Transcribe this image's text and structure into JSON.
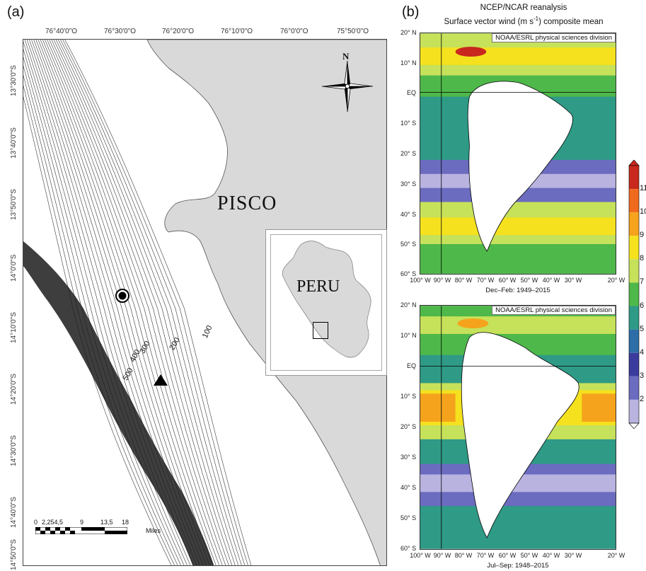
{
  "panel_a": {
    "letter": "(a)",
    "top_ticks": [
      "76°40'0\"O",
      "76°30'0\"O",
      "76°20'0\"O",
      "76°10'0\"O",
      "76°0'0\"O",
      "75°50'0\"O"
    ],
    "left_ticks": [
      "13°30'0\"S",
      "13°40'0\"S",
      "13°50'0\"S",
      "14°0'0\"S",
      "14°10'0\"S",
      "14°20'0\"S",
      "14°30'0\"S",
      "14°40'0\"S",
      "14°50'0\"S"
    ],
    "place_label": "PISCO",
    "inset_label": "PERU",
    "north_label": "N",
    "contour_labels": [
      "100",
      "200",
      "300",
      "400",
      "500"
    ],
    "scale_numbers": [
      "0",
      "2,254,5",
      "9",
      "13,5",
      "18"
    ],
    "scale_unit": "Miles",
    "colors": {
      "land": "#d9d9d9",
      "sea": "#ffffff",
      "contour": "#3a3a3a"
    }
  },
  "panel_b": {
    "letter": "(b)",
    "title_line1": "NCEP/NCAR reanalysis",
    "title_line2": "Surface vector wind (m s",
    "title_sup": "-1",
    "title_line2_end": ") composite mean",
    "credit": "NOAA/ESRL physical sciences division",
    "lat_labels": [
      "20° N",
      "10° N",
      "EQ",
      "10° S",
      "20° S",
      "30° S",
      "40° S",
      "50° S",
      "60° S"
    ],
    "lon_labels": [
      "100° W",
      "90° W",
      "80° W",
      "70° W",
      "60° W",
      "50° W",
      "40° W",
      "30° W",
      "20° W"
    ],
    "caption_top": "Dec–Feb: 1949–2015",
    "caption_bottom": "Jul–Sep: 1948–2015",
    "colorbar_labels": [
      "11",
      "10",
      "9",
      "8",
      "7",
      "6",
      "5",
      "4",
      "3",
      "2"
    ],
    "colorbar_colors": [
      "#c8281e",
      "#f06a1e",
      "#f5a31c",
      "#f5e11e",
      "#c6e15a",
      "#4fb84a",
      "#2f9a86",
      "#2e6ea8",
      "#3b3b9e",
      "#6b6bc0",
      "#b9b3e0"
    ]
  }
}
